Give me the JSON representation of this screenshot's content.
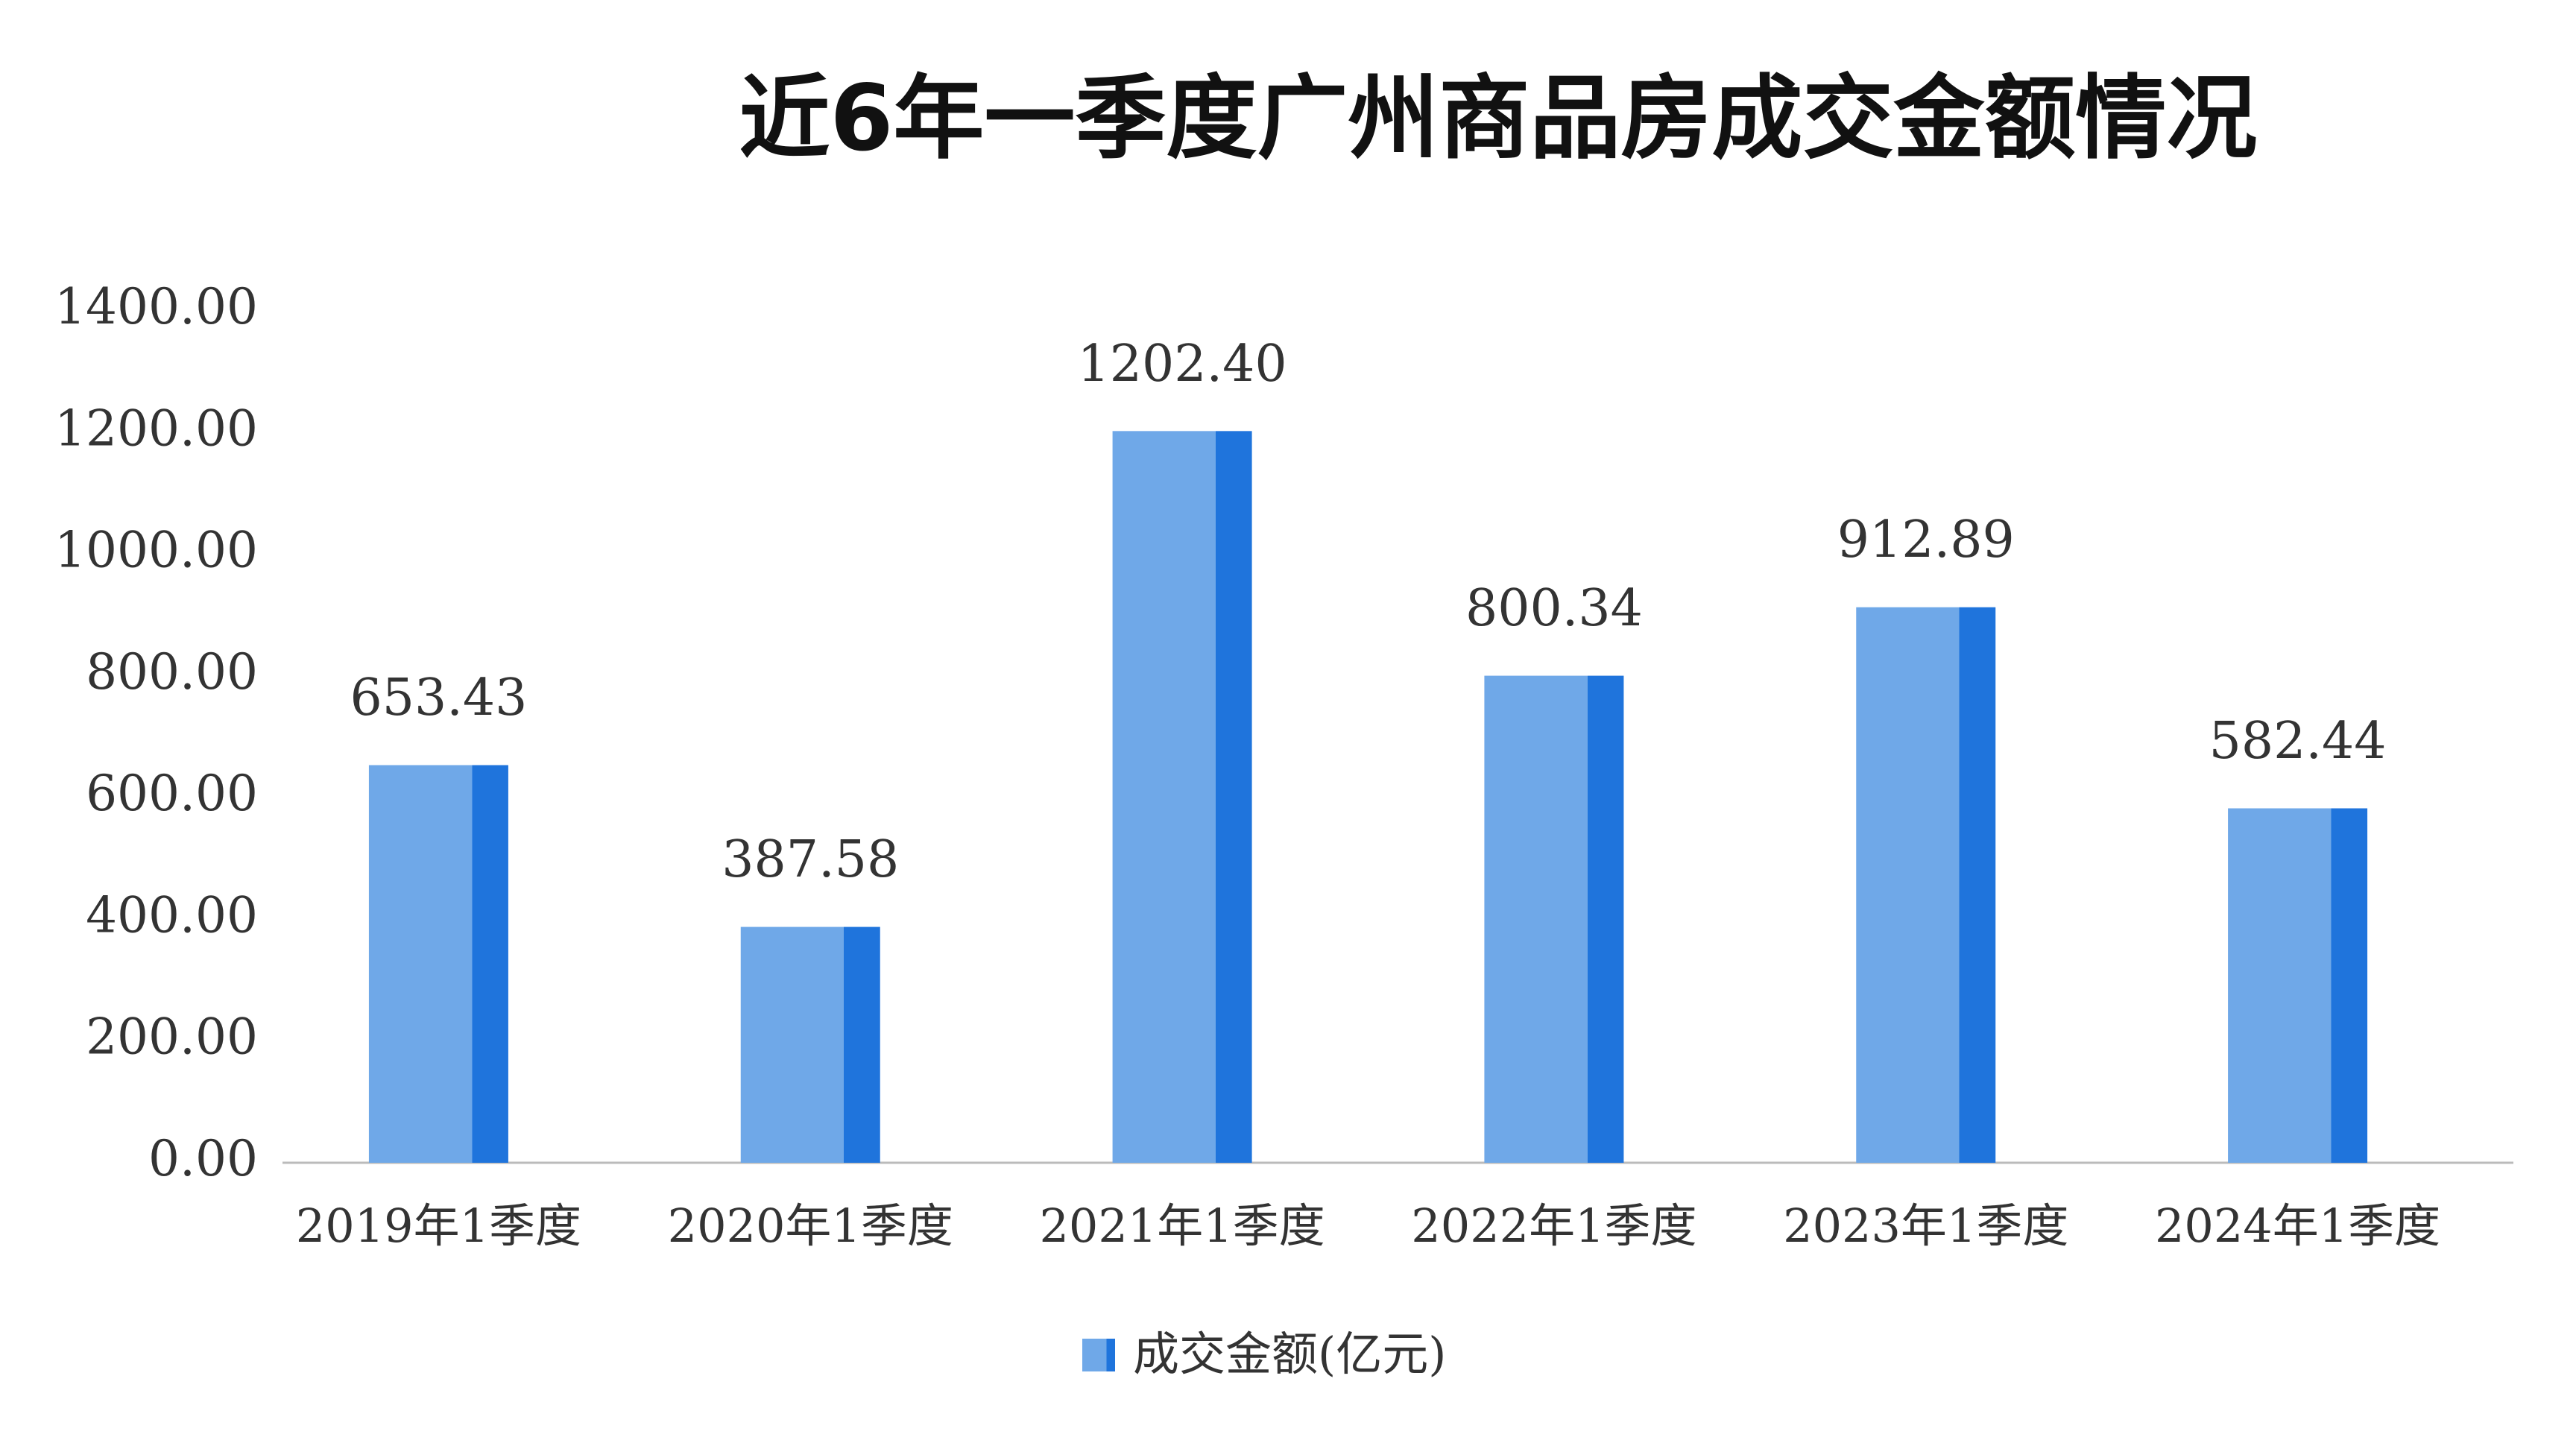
{
  "chart_data": {
    "type": "bar",
    "title": "近6年一季度广州商品房成交金额情况",
    "categories": [
      "2019年1季度",
      "2020年1季度",
      "2021年1季度",
      "2022年1季度",
      "2023年1季度",
      "2024年1季度"
    ],
    "series": [
      {
        "name": "成交金额(亿元)",
        "color": "#6fa8e8",
        "values": [
          653.43,
          387.58,
          1202.4,
          800.34,
          912.89,
          582.44
        ],
        "value_labels": [
          "653.43",
          "387.58",
          "1202.40",
          "800.34",
          "912.89",
          "582.44"
        ]
      }
    ],
    "ylim": [
      0,
      1400
    ],
    "yticks": [
      {
        "value": 0,
        "label": "0.00"
      },
      {
        "value": 200,
        "label": "200.00"
      },
      {
        "value": 400,
        "label": "400.00"
      },
      {
        "value": 600,
        "label": "600.00"
      },
      {
        "value": 800,
        "label": "800.00"
      },
      {
        "value": 1000,
        "label": "1000.00"
      },
      {
        "value": 1200,
        "label": "1200.00"
      },
      {
        "value": 1400,
        "label": "1400.00"
      }
    ],
    "grid": false,
    "legend": "bottom"
  }
}
